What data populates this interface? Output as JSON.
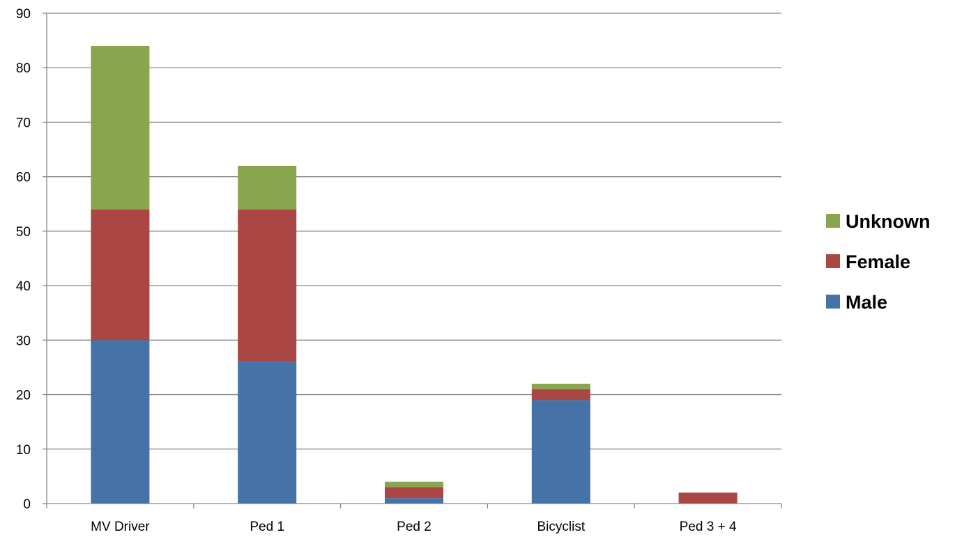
{
  "chart_data": {
    "type": "bar",
    "stacked": true,
    "categories": [
      "MV Driver",
      "Ped 1",
      "Ped 2",
      "Bicyclist",
      "Ped 3 + 4"
    ],
    "series": [
      {
        "name": "Male",
        "color": "#4572A7",
        "values": [
          30,
          26,
          1,
          19,
          0
        ]
      },
      {
        "name": "Female",
        "color": "#AA4643",
        "values": [
          24,
          28,
          2,
          2,
          2
        ]
      },
      {
        "name": "Unknown",
        "color": "#89A54E",
        "values": [
          30,
          8,
          1,
          1,
          0
        ]
      }
    ],
    "ylim": [
      0,
      90
    ],
    "yticks": [
      0,
      10,
      20,
      30,
      40,
      50,
      60,
      70,
      80,
      90
    ],
    "title": "",
    "xlabel": "",
    "ylabel": "",
    "grid": true,
    "legend": {
      "position": "right",
      "order": [
        "Unknown",
        "Female",
        "Male"
      ]
    }
  }
}
